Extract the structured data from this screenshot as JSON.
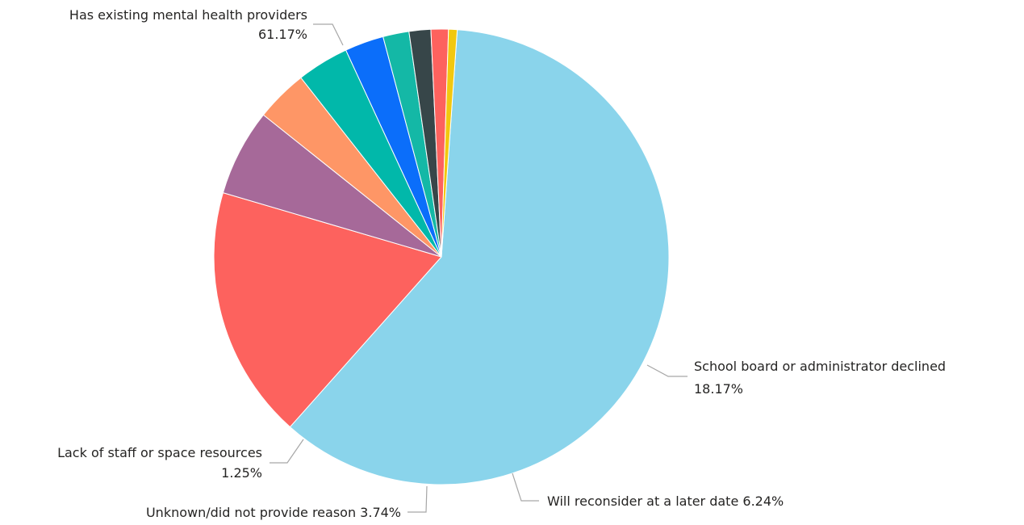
{
  "chart_data": {
    "type": "pie",
    "title": "",
    "start_angle_deg": 86.0,
    "direction": "clockwise",
    "slices": [
      {
        "label": "Has existing mental health providers",
        "value": 61.17,
        "value_label": "61.17%",
        "color": "#8AD4EB"
      },
      {
        "label": "School board or administrator declined",
        "value": 18.17,
        "value_label": "18.17%",
        "color": "#FD625E"
      },
      {
        "label": "Will reconsider at a later date",
        "value": 6.24,
        "value_label": "6.24%",
        "color": "#A66999"
      },
      {
        "label": "",
        "value": 3.74,
        "value_label": "",
        "color": "#FE9666"
      },
      {
        "label": "Unknown/did not provide reason",
        "value": 3.74,
        "value_label": "3.74%",
        "color": "#01B8AA"
      },
      {
        "label": "",
        "value": 2.8,
        "value_label": "",
        "color": "#0B6EFA"
      },
      {
        "label": "",
        "value": 1.87,
        "value_label": "",
        "color": "#14B8A6"
      },
      {
        "label": "",
        "value": 1.56,
        "value_label": "",
        "color": "#374649"
      },
      {
        "label": "Lack of staff or space resources",
        "value": 1.25,
        "value_label": "1.25%",
        "color": "#FD625E"
      },
      {
        "label": "",
        "value": 0.62,
        "value_label": "",
        "color": "#F2C80F"
      }
    ]
  }
}
